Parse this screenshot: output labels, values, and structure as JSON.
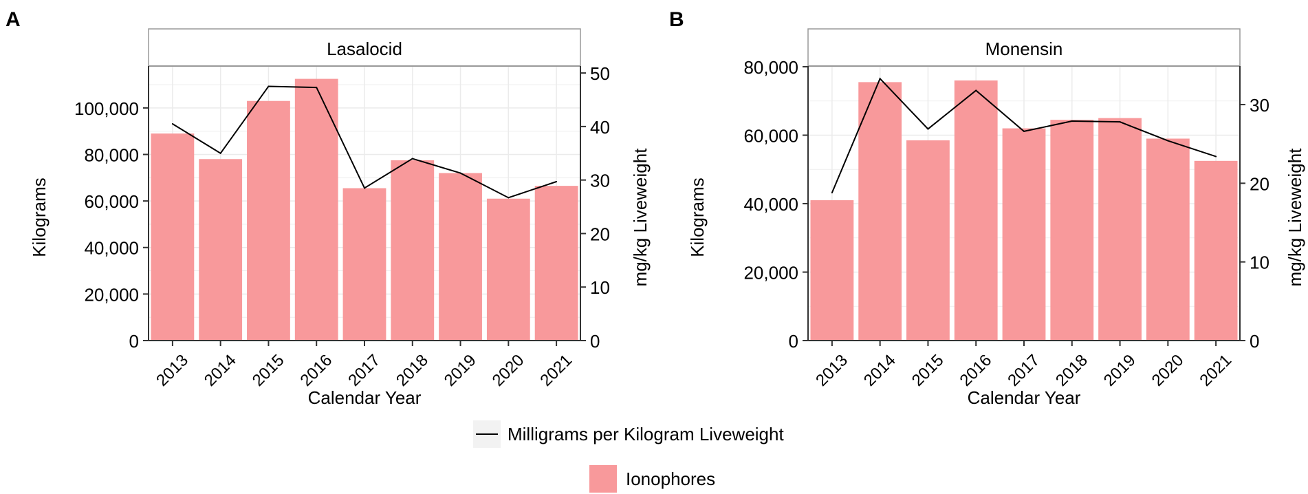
{
  "colors": {
    "bar": "#F8999B",
    "line": "#000000",
    "grid": "#EBEBEB",
    "axis": "#333333",
    "strip_bg": "#FFFFFF",
    "strip_border": "#999999"
  },
  "chart_data": [
    {
      "type": "bar",
      "panel_label": "A",
      "title": "Lasalocid",
      "xlabel": "Calendar Year",
      "ylabel": "Kilograms",
      "y2label": "mg/kg Liveweight",
      "categories": [
        "2013",
        "2014",
        "2015",
        "2016",
        "2017",
        "2018",
        "2019",
        "2020",
        "2021"
      ],
      "ylim": [
        0,
        118000
      ],
      "y2lim": [
        0,
        51.3
      ],
      "yticks": [
        0,
        20000,
        40000,
        60000,
        80000,
        100000
      ],
      "ytick_labels": [
        "0",
        "20,000",
        "40,000",
        "60,000",
        "80,000",
        "100,000"
      ],
      "y2ticks": [
        0,
        10,
        20,
        30,
        40,
        50
      ],
      "y2tick_labels": [
        "0",
        "10",
        "20",
        "30",
        "40",
        "50"
      ],
      "series": [
        {
          "name": "Ionophores",
          "kind": "bar",
          "axis": "left",
          "values": [
            89000,
            78000,
            103000,
            112500,
            65500,
            77500,
            72000,
            61000,
            66500
          ]
        },
        {
          "name": "Milligrams per Kilogram Liveweight",
          "kind": "line",
          "axis": "right",
          "values": [
            40.5,
            35.0,
            47.5,
            47.3,
            28.5,
            34.0,
            31.3,
            26.7,
            29.7
          ]
        }
      ]
    },
    {
      "type": "bar",
      "panel_label": "B",
      "title": "Monensin",
      "xlabel": "Calendar Year",
      "ylabel": "Kilograms",
      "y2label": "mg/kg Liveweight",
      "categories": [
        "2013",
        "2014",
        "2015",
        "2016",
        "2017",
        "2018",
        "2019",
        "2020",
        "2021"
      ],
      "ylim": [
        0,
        80200
      ],
      "y2lim": [
        0,
        34.9
      ],
      "yticks": [
        0,
        20000,
        40000,
        60000,
        80000
      ],
      "ytick_labels": [
        "0",
        "20,000",
        "40,000",
        "60,000",
        "80,000"
      ],
      "y2ticks": [
        0,
        10,
        20,
        30
      ],
      "y2tick_labels": [
        "0",
        "10",
        "20",
        "30"
      ],
      "series": [
        {
          "name": "Ionophores",
          "kind": "bar",
          "axis": "left",
          "values": [
            41000,
            75500,
            58500,
            76000,
            62000,
            64500,
            65000,
            59000,
            52500
          ]
        },
        {
          "name": "Milligrams per Kilogram Liveweight",
          "kind": "line",
          "axis": "right",
          "values": [
            18.8,
            33.3,
            26.9,
            31.8,
            26.6,
            27.9,
            27.8,
            25.4,
            23.4
          ]
        }
      ]
    }
  ],
  "legend": {
    "line_label": "Milligrams per Kilogram Liveweight",
    "bar_label": "Ionophores"
  }
}
